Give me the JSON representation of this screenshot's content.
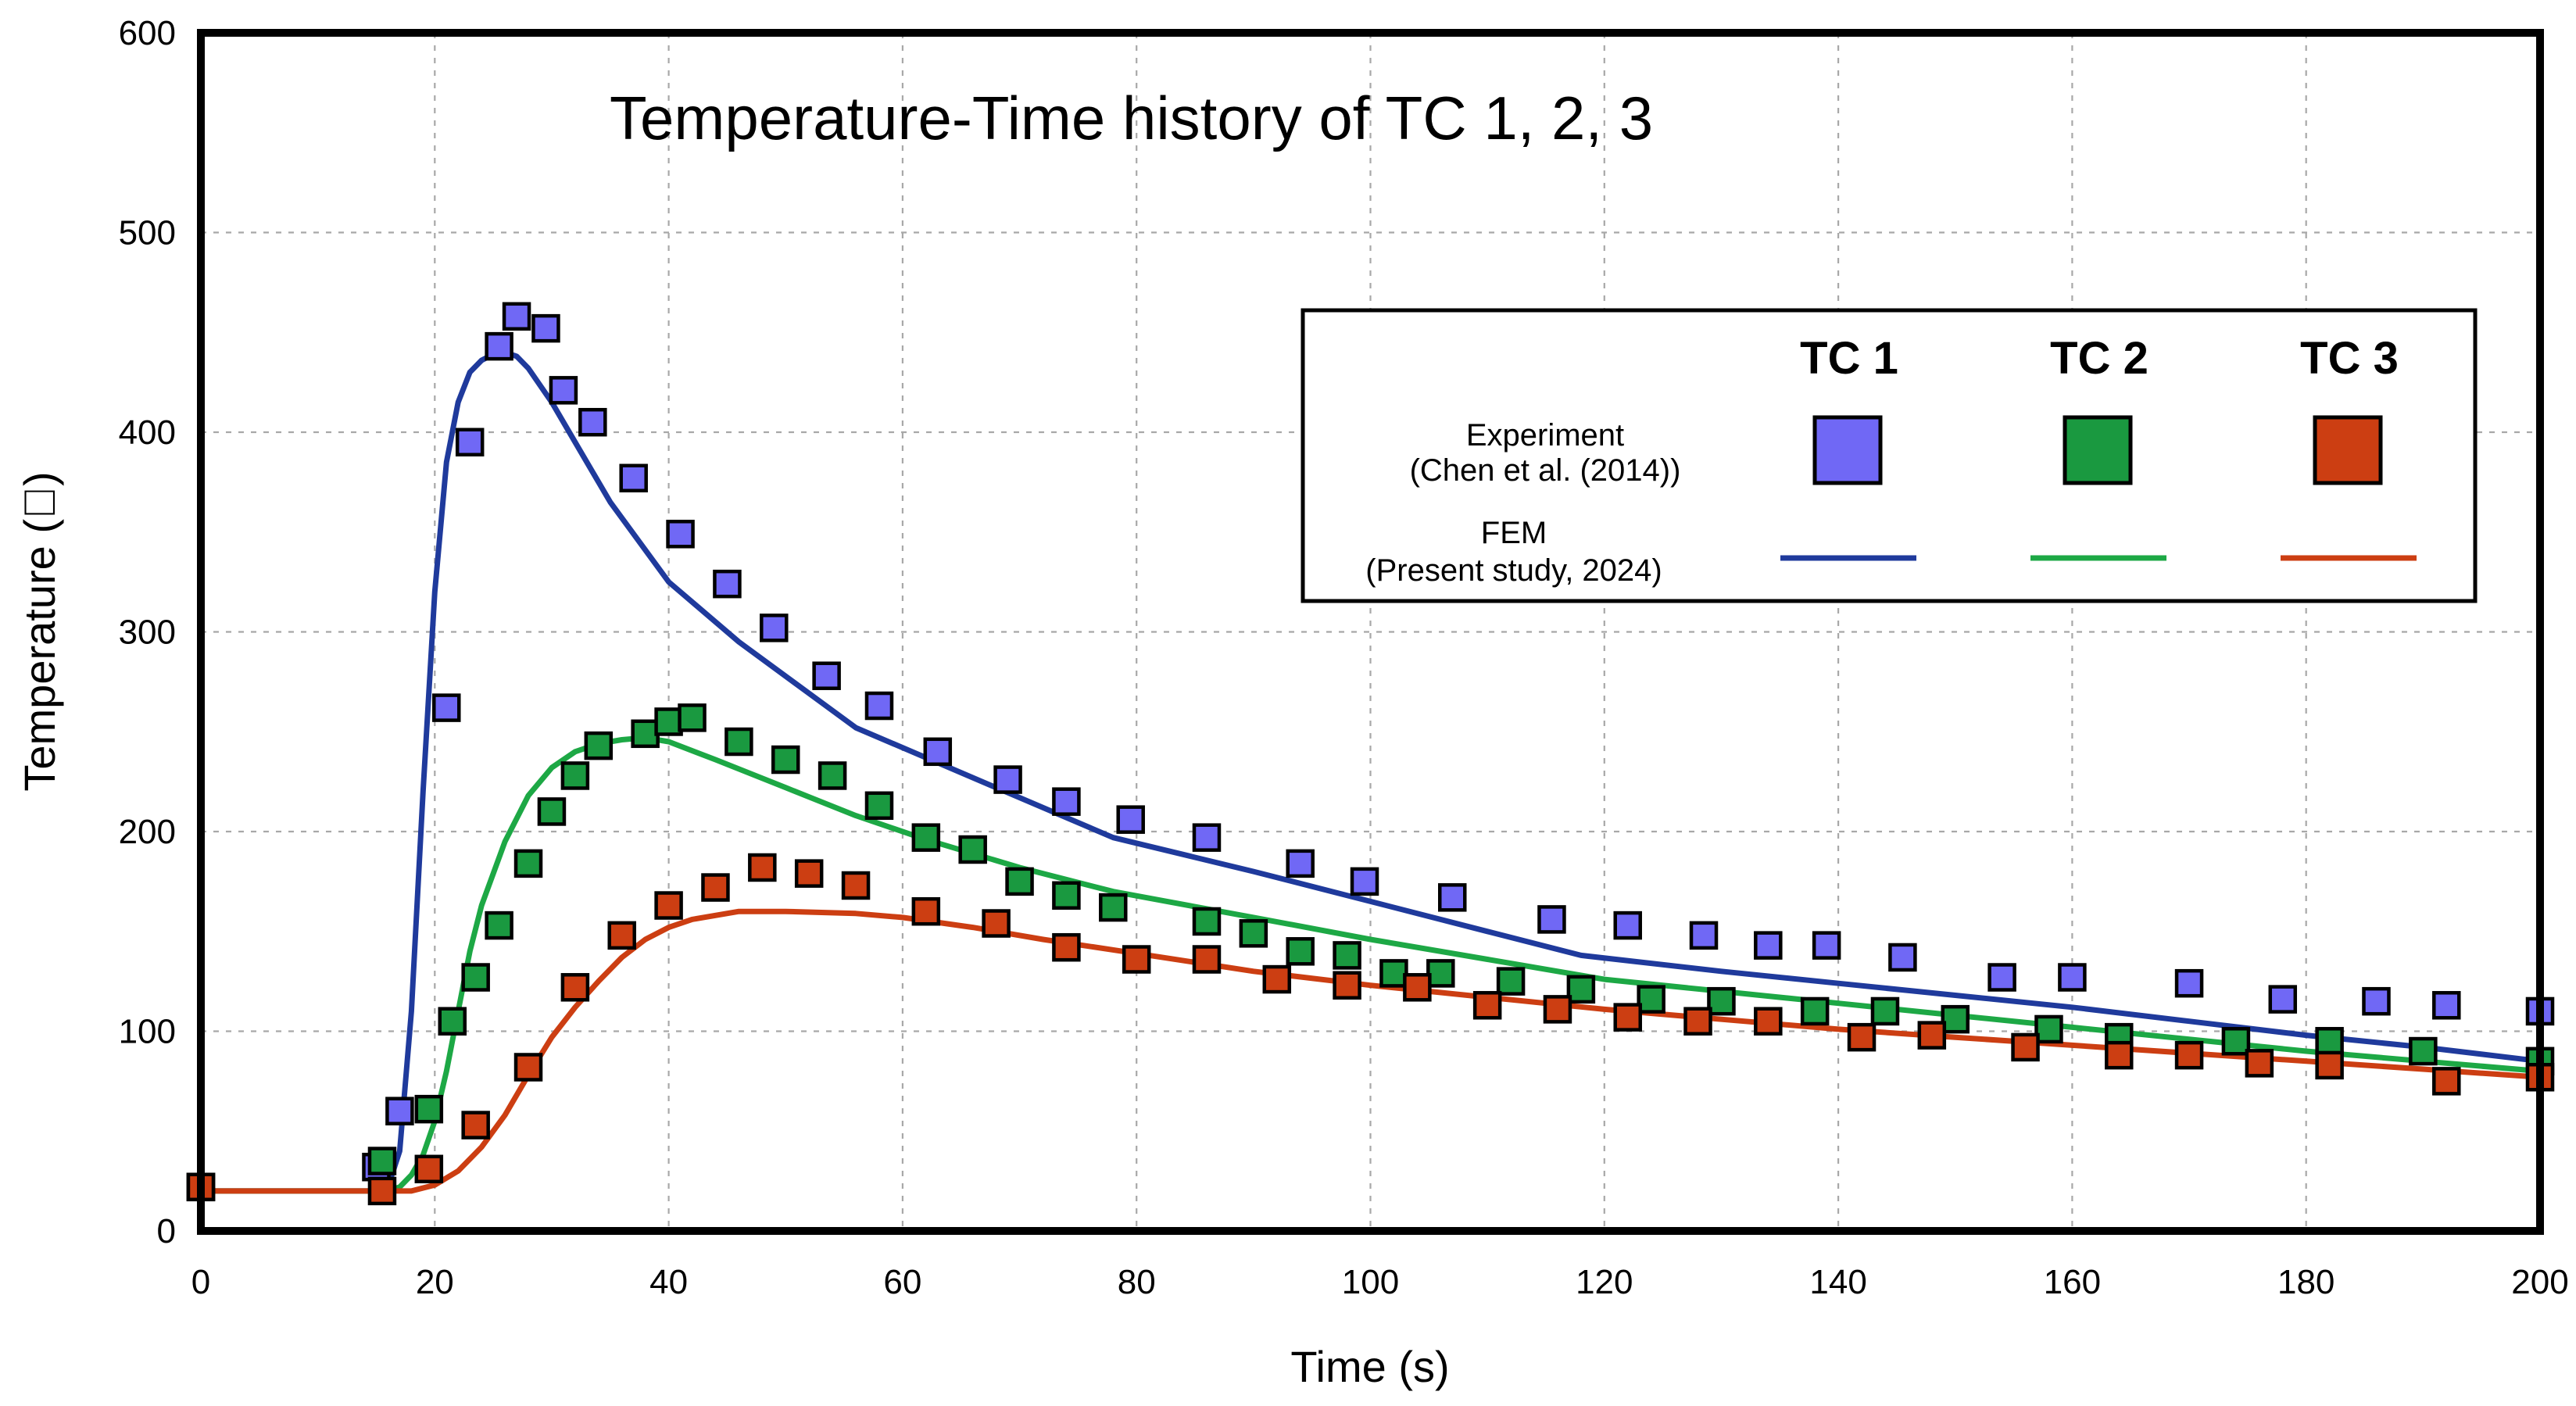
{
  "chart_data": {
    "type": "line",
    "title": "Temperature-Time history of TC 1, 2, 3",
    "xlabel": "Time (s)",
    "ylabel": "Temperature (℃)",
    "ylabel_display": "Temperature (\u0000)",
    "xlim": [
      0,
      200
    ],
    "ylim": [
      0,
      600
    ],
    "xticks": [
      0,
      20,
      40,
      60,
      80,
      100,
      120,
      140,
      160,
      180,
      200
    ],
    "yticks": [
      0,
      100,
      200,
      300,
      400,
      500,
      600
    ],
    "grid": true,
    "legend": {
      "position": "top-right",
      "column_headers": [
        "TC 1",
        "TC 2",
        "TC 3"
      ],
      "experiment_label": "Experiment",
      "experiment_source": "(Chen et al. (2014))",
      "fem_label": "FEM",
      "fem_source": "(Present study, 2024)"
    },
    "series": [
      {
        "name": "TC 1 FEM",
        "kind": "line",
        "color": "#1f3a9c",
        "x": [
          0,
          15,
          16,
          17,
          18,
          19,
          20,
          21,
          22,
          23,
          24,
          25,
          26,
          27,
          28,
          30,
          32,
          35,
          40,
          46,
          56,
          68,
          78,
          90,
          100,
          110,
          118,
          130,
          140,
          150,
          160,
          170,
          180,
          190,
          200
        ],
        "y": [
          20,
          20,
          22,
          40,
          110,
          220,
          320,
          385,
          415,
          430,
          436,
          439,
          440,
          438,
          432,
          415,
          395,
          365,
          325,
          295,
          252,
          222,
          197,
          180,
          165,
          150,
          138,
          130,
          124,
          118,
          112,
          105,
          98,
          92,
          85
        ]
      },
      {
        "name": "TC 2 FEM",
        "kind": "line",
        "color": "#1da845",
        "x": [
          0,
          16,
          17,
          18,
          19,
          20,
          21,
          22,
          23,
          24,
          26,
          28,
          30,
          32,
          34,
          36,
          38,
          40,
          44,
          50,
          56,
          62,
          70,
          78,
          90,
          100,
          110,
          120,
          130,
          140,
          150,
          160,
          170,
          180,
          190,
          200
        ],
        "y": [
          20,
          20,
          22,
          28,
          38,
          55,
          80,
          110,
          140,
          163,
          195,
          218,
          232,
          240,
          244,
          246,
          247,
          245,
          236,
          222,
          208,
          196,
          182,
          170,
          157,
          146,
          136,
          126,
          120,
          114,
          108,
          102,
          96,
          90,
          85,
          80
        ]
      },
      {
        "name": "TC 3 FEM",
        "kind": "line",
        "color": "#cc3e12",
        "x": [
          0,
          18,
          20,
          22,
          24,
          26,
          28,
          30,
          32,
          34,
          36,
          38,
          40,
          42,
          46,
          50,
          56,
          60,
          66,
          72,
          80,
          90,
          100,
          110,
          120,
          130,
          140,
          150,
          160,
          170,
          180,
          190,
          200
        ],
        "y": [
          20,
          20,
          23,
          30,
          42,
          58,
          78,
          97,
          112,
          125,
          137,
          146,
          152,
          156,
          160,
          160,
          159,
          157,
          152,
          146,
          139,
          130,
          123,
          117,
          111,
          106,
          101,
          97,
          93,
          89,
          85,
          81,
          77
        ]
      },
      {
        "name": "TC 1 Experiment",
        "kind": "scatter",
        "color": "#7068f5",
        "x": [
          0,
          15,
          17,
          21,
          23,
          25.5,
          27,
          29.5,
          31,
          33.5,
          37,
          41,
          45,
          49,
          53.5,
          58,
          63,
          69,
          74,
          79.5,
          86,
          94,
          99.5,
          107,
          115.5,
          122,
          128.5,
          134,
          139,
          145.5,
          154,
          160,
          170,
          178,
          186,
          192,
          200
        ],
        "y": [
          22,
          32,
          60,
          262,
          395,
          443,
          458,
          452,
          421,
          405,
          377,
          349,
          324,
          302,
          278,
          263,
          240,
          226,
          215,
          206,
          197,
          184,
          175,
          167,
          156,
          153,
          148,
          143,
          143,
          137,
          127,
          127,
          124,
          116,
          115,
          113,
          110
        ]
      },
      {
        "name": "TC 2 Experiment",
        "kind": "scatter",
        "color": "#1a9940",
        "x": [
          0,
          15.5,
          19.5,
          21.5,
          23.5,
          25.5,
          28,
          30,
          32,
          34,
          38,
          40,
          42,
          46,
          50,
          54,
          58,
          62,
          66,
          70,
          74,
          78,
          86,
          90,
          94,
          98,
          102,
          106,
          112,
          118,
          124,
          130,
          138,
          144,
          150,
          158,
          164,
          174,
          182,
          190,
          200
        ],
        "y": [
          22,
          35,
          61,
          105,
          127,
          153,
          184,
          210,
          228,
          243,
          249,
          255,
          257,
          245,
          236,
          228,
          213,
          197,
          191,
          175,
          168,
          162,
          155,
          149,
          140,
          138,
          129,
          129,
          125,
          121,
          116,
          115,
          110,
          110,
          106,
          101,
          97,
          95,
          95,
          90,
          85
        ]
      },
      {
        "name": "TC 3 Experiment",
        "kind": "scatter",
        "color": "#cc3e12",
        "x": [
          0,
          15.5,
          19.5,
          23.5,
          28,
          32,
          36,
          40,
          44,
          48,
          52,
          56,
          62,
          68,
          74,
          80,
          86,
          92,
          98,
          104,
          110,
          116,
          122,
          128,
          134,
          142,
          148,
          156,
          164,
          170,
          176,
          182,
          192,
          200
        ],
        "y": [
          22,
          20,
          31,
          53,
          82,
          122,
          148,
          163,
          172,
          182,
          179,
          173,
          160,
          154,
          142,
          136,
          136,
          126,
          123,
          122,
          113,
          111,
          107,
          105,
          105,
          97,
          98,
          92,
          88,
          88,
          84,
          83,
          75,
          77
        ]
      }
    ]
  }
}
